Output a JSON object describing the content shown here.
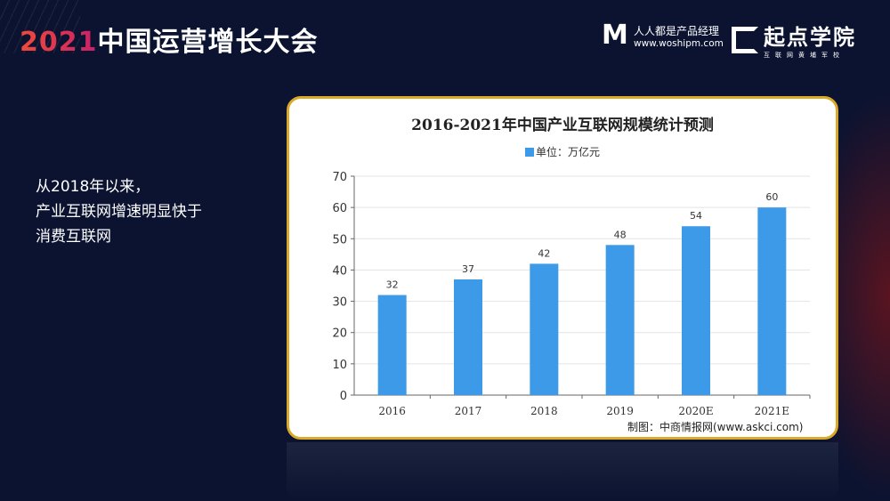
{
  "header": {
    "conference_year": "2021",
    "conference_name": "中国运营增长大会",
    "logo1": {
      "name": "人人都是产品经理",
      "url": "www.woshipm.com"
    },
    "logo2": {
      "name": "起点学院",
      "tagline": "互联网黄埔军校"
    }
  },
  "side_text": {
    "line1": "从2018年以来，",
    "line2": "产业互联网增速明显快于",
    "line3": "消费互联网"
  },
  "chart_data": {
    "type": "bar",
    "title": "2016-2021年中国产业互联网规模统计预测",
    "legend": "单位：万亿元",
    "categories": [
      "2016",
      "2017",
      "2018",
      "2019",
      "2020E",
      "2021E"
    ],
    "values": [
      32,
      37,
      42,
      48,
      54,
      60
    ],
    "ylim": [
      0,
      70
    ],
    "yticks": [
      0,
      10,
      20,
      30,
      40,
      50,
      60,
      70
    ],
    "grid": true,
    "color": "#3d9ae8",
    "source": "制图：中商情报网(www.askci.com)"
  }
}
